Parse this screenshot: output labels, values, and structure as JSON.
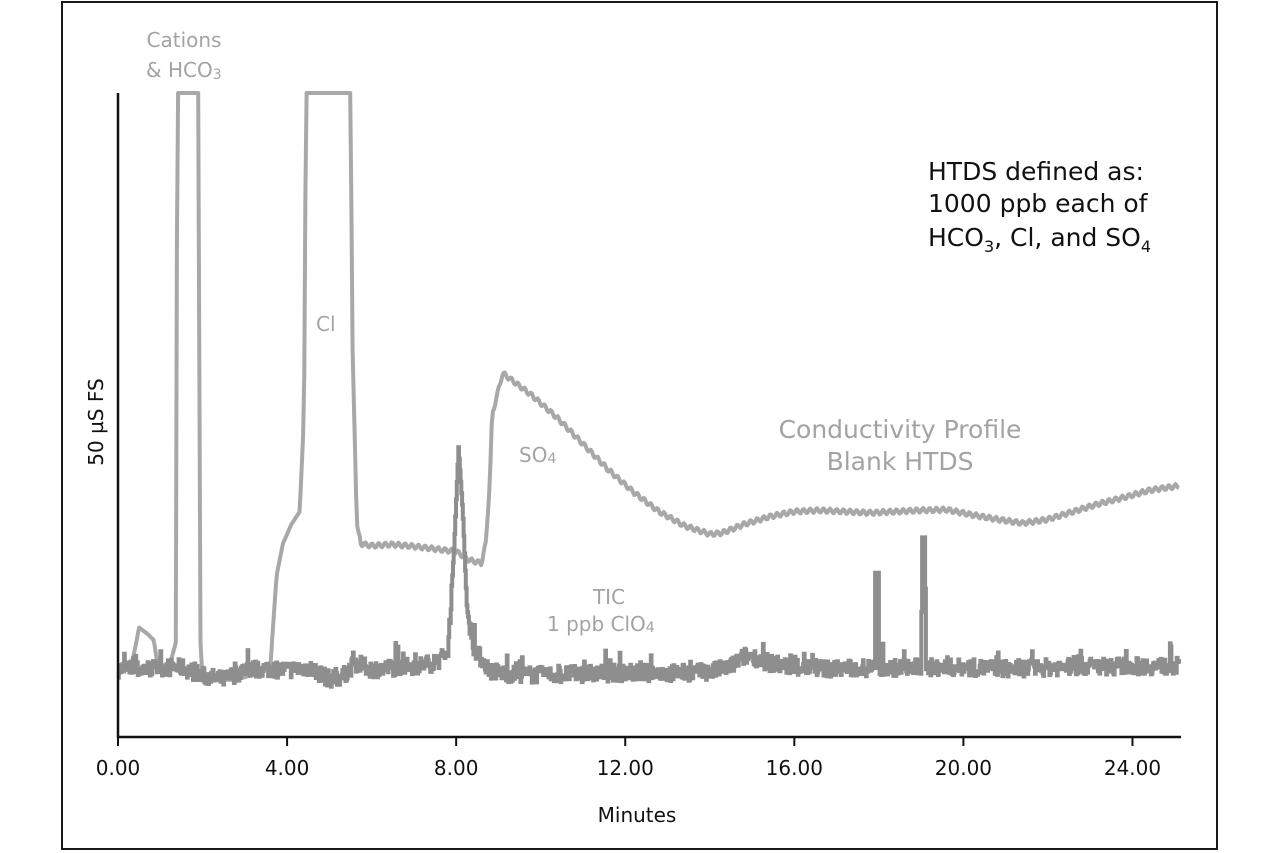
{
  "chart_data": {
    "type": "line",
    "title": "",
    "xlabel": "Minutes",
    "ylabel": "50 µS FS",
    "xlim": [
      0,
      25.2
    ],
    "ylim": [
      0,
      100
    ],
    "x_ticks": [
      "0.00",
      "4.00",
      "8.00",
      "12.00",
      "16.00",
      "20.00",
      "24.00"
    ],
    "x_tick_values": [
      0,
      4,
      8,
      12,
      16,
      20,
      24
    ],
    "grid": false,
    "legend": null,
    "colors": {
      "conductivity": "#a8a8a8",
      "tic": "#8e8e8e",
      "axis": "#111111"
    },
    "annotations": {
      "cations": {
        "line1": "Cations",
        "line2": "& HCO",
        "sub": "3"
      },
      "cl": "Cl",
      "so4": {
        "text": "SO",
        "sub": "4"
      },
      "conductivity_profile": {
        "line1": "Conductivity Profile",
        "line2": "Blank HTDS"
      },
      "tic": {
        "line1": "TIC",
        "line2": "1 ppb ClO",
        "sub": "4"
      },
      "htds_note": {
        "line1": "HTDS defined as:",
        "line2": "1000 ppb each of",
        "line3_a": "HCO",
        "line3_sub1": "3",
        "line3_b": ", Cl, and SO",
        "line3_sub2": "4"
      }
    },
    "series": [
      {
        "name": "Conductivity Profile Blank HTDS",
        "color": "#a8a8a8",
        "x": [
          0,
          0.35,
          0.5,
          0.7,
          0.85,
          0.95,
          1.2,
          1.38,
          1.4,
          1.9,
          1.95,
          2.0,
          2.8,
          3.6,
          3.75,
          3.9,
          4.1,
          4.3,
          4.4,
          4.45,
          4.55,
          5.5,
          5.55,
          5.65,
          5.75,
          6.0,
          6.5,
          7.0,
          7.5,
          8.0,
          8.3,
          8.6,
          8.7,
          8.8,
          8.85,
          9.1,
          9.3,
          9.8,
          10.4,
          11.0,
          11.6,
          12.2,
          12.8,
          13.4,
          14.0,
          14.3,
          14.8,
          15.4,
          16.0,
          16.6,
          17.2,
          17.8,
          18.4,
          19.0,
          19.6,
          20.2,
          20.8,
          21.4,
          22.0,
          22.6,
          23.2,
          23.8,
          24.4,
          25.1
        ],
        "y": [
          10.5,
          12,
          17,
          16,
          15,
          10.5,
          10.5,
          15,
          100,
          100,
          15,
          8.9,
          8.9,
          10.5,
          25,
          30,
          33,
          35,
          50,
          100,
          100,
          100,
          60,
          33,
          30,
          29.7,
          29.9,
          29.6,
          29.2,
          28.8,
          27.5,
          27.0,
          30,
          40,
          50,
          56.5,
          55.5,
          53,
          49.5,
          45.5,
          41.5,
          38,
          35,
          32.8,
          31.5,
          31.7,
          33,
          34.2,
          35,
          35.2,
          35,
          34.8,
          35,
          35.2,
          35.3,
          34.5,
          33.8,
          33.2,
          33.8,
          35,
          36.2,
          37.2,
          38.3,
          39
        ]
      },
      {
        "name": "TIC 1 ppb ClO4",
        "color": "#8e8e8e",
        "x": [
          0,
          0.5,
          1.0,
          1.5,
          2.0,
          2.5,
          3.0,
          3.5,
          4.0,
          4.5,
          5.0,
          5.3,
          5.6,
          5.8,
          6.0,
          6.5,
          7.0,
          7.5,
          7.8,
          7.95,
          8.05,
          8.15,
          8.25,
          8.4,
          8.6,
          8.8,
          9.2,
          10,
          11,
          12,
          13,
          14,
          14.5,
          14.8,
          15.0,
          15.4,
          16,
          17,
          17.9,
          17.91,
          17.99,
          18.0,
          19.0,
          19.01,
          19.09,
          19.1,
          20,
          21,
          22,
          23,
          24,
          25.1
        ],
        "y": [
          10.5,
          10.5,
          10.8,
          10.8,
          9.5,
          8.9,
          10.5,
          10.6,
          10.4,
          10.8,
          9.0,
          9.3,
          11.5,
          11.0,
          10.5,
          10.8,
          11.0,
          11.5,
          13,
          30,
          45,
          35,
          20,
          14,
          12,
          10.3,
          9.8,
          9.6,
          9.8,
          10.0,
          9.9,
          10.1,
          11,
          12.5,
          12.5,
          11.5,
          10.8,
          10.6,
          10.7,
          25.5,
          25.5,
          10.7,
          10.8,
          31,
          31,
          10.8,
          10.8,
          10.6,
          10.8,
          11.0,
          11.0,
          11.0
        ]
      }
    ]
  }
}
